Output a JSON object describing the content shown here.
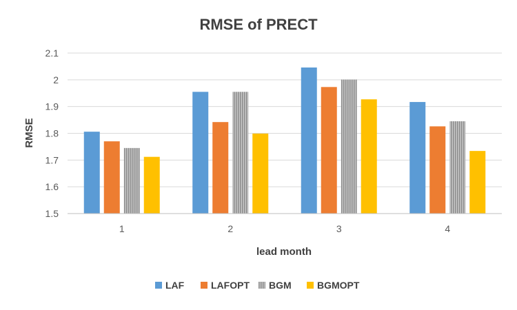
{
  "chart_data": {
    "type": "bar",
    "title": "RMSE of PRECT",
    "xlabel": "lead month",
    "ylabel": "RMSE",
    "categories": [
      "1",
      "2",
      "3",
      "4"
    ],
    "ylim": [
      1.5,
      2.1
    ],
    "yticks": [
      "1.5",
      "1.6",
      "1.7",
      "1.8",
      "1.9",
      "2",
      "2.1"
    ],
    "grid": true,
    "legend_position": "bottom",
    "series": [
      {
        "name": "LAF",
        "color": "#5B9BD5",
        "values": [
          1.806,
          1.955,
          2.046,
          1.917
        ]
      },
      {
        "name": "LAFOPT",
        "color": "#ED7D31",
        "values": [
          1.77,
          1.842,
          1.973,
          1.826
        ]
      },
      {
        "name": "BGM",
        "color": "#A5A5A5",
        "pattern": "vertical-stripes",
        "values": [
          1.745,
          1.955,
          2.001,
          1.845
        ]
      },
      {
        "name": "BGMOPT",
        "color": "#FFC000",
        "values": [
          1.712,
          1.799,
          1.927,
          1.734
        ]
      }
    ]
  }
}
